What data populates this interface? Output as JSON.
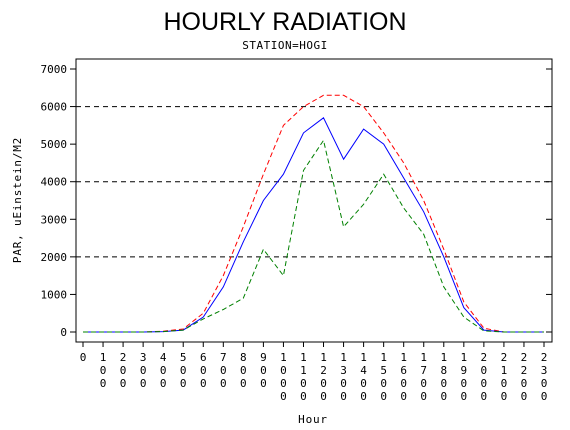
{
  "chart_data": {
    "type": "line",
    "title": "HOURLY RADIATION",
    "subtitle": "STATION=HOGI",
    "xlabel": "Hour",
    "ylabel": "PAR, uEinstein/M2",
    "xlim": [
      0,
      2300
    ],
    "ylim": [
      0,
      7000
    ],
    "y_ticks": [
      0,
      1000,
      2000,
      3000,
      4000,
      5000,
      6000,
      7000
    ],
    "y_tick_labels": [
      "0",
      "1000",
      "2000",
      "3000",
      "4000",
      "5000",
      "6000",
      "7000"
    ],
    "x_ticks": [
      0,
      100,
      200,
      300,
      400,
      500,
      600,
      700,
      800,
      900,
      1000,
      1100,
      1200,
      1300,
      1400,
      1500,
      1600,
      1700,
      1800,
      1900,
      2000,
      2100,
      2200,
      2300
    ],
    "x_tick_labels": [
      "0",
      "100",
      "200",
      "300",
      "400",
      "500",
      "600",
      "700",
      "800",
      "900",
      "1000",
      "1100",
      "1200",
      "1300",
      "1400",
      "1500",
      "1600",
      "1700",
      "1800",
      "1900",
      "2000",
      "2100",
      "2200",
      "2300"
    ],
    "reference_lines": [
      2000,
      4000,
      6000
    ],
    "grid": false,
    "x": [
      0,
      100,
      200,
      300,
      400,
      500,
      600,
      700,
      800,
      900,
      1000,
      1100,
      1200,
      1300,
      1400,
      1500,
      1600,
      1700,
      1800,
      1900,
      2000,
      2100,
      2200,
      2300
    ],
    "series": [
      {
        "color": "#ff0000",
        "dash": "dashed",
        "values": [
          0,
          0,
          0,
          0,
          20,
          80,
          500,
          1500,
          2800,
          4200,
          5500,
          6000,
          6300,
          6300,
          6000,
          5300,
          4500,
          3500,
          2200,
          800,
          100,
          0,
          0,
          0
        ]
      },
      {
        "color": "#0000ff",
        "dash": "solid",
        "values": [
          0,
          0,
          0,
          0,
          10,
          50,
          400,
          1200,
          2400,
          3500,
          4200,
          5300,
          5700,
          4600,
          5400,
          5000,
          4100,
          3200,
          2000,
          650,
          50,
          0,
          0,
          0
        ]
      },
      {
        "color": "#008000",
        "dash": "dashed",
        "values": [
          0,
          0,
          0,
          0,
          10,
          50,
          350,
          600,
          900,
          2200,
          1500,
          4300,
          5100,
          2800,
          3400,
          4200,
          3300,
          2600,
          1200,
          400,
          30,
          0,
          0,
          0
        ]
      }
    ]
  }
}
